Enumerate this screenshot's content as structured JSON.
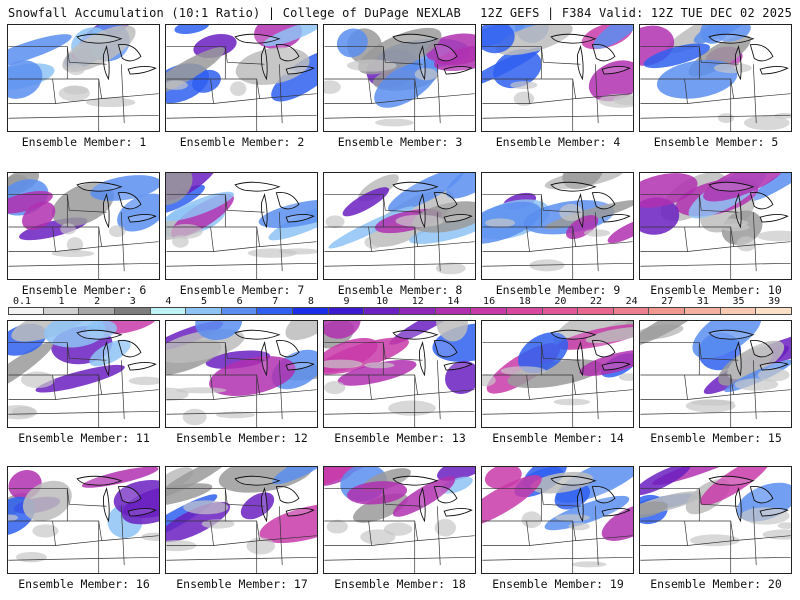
{
  "header": {
    "title": "Snowfall Accumulation (10:1 Ratio) | College of DuPage NEXLAB",
    "run_info": "12Z GEFS | F384 Valid: 12Z TUE DEC 02 2025"
  },
  "colorbar": {
    "labels": [
      "0.1",
      "1",
      "2",
      "3",
      "4",
      "5",
      "6",
      "7",
      "8",
      "9",
      "10",
      "12",
      "14",
      "16",
      "18",
      "20",
      "22",
      "24",
      "27",
      "31",
      "35",
      "39"
    ],
    "colors": [
      "#f2f2f2",
      "#d0d0d0",
      "#a8a8a8",
      "#7e7e7e",
      "#bdf2f5",
      "#8ec3f5",
      "#5a8ef0",
      "#2f5ff0",
      "#1c2fe8",
      "#3b1ad0",
      "#6a1fc0",
      "#8e28b8",
      "#b030b0",
      "#c83aa8",
      "#d848a0",
      "#e05898",
      "#e86890",
      "#ec8090",
      "#f09890",
      "#f4b0a0",
      "#f8c8b0",
      "#fbe0c8"
    ]
  },
  "members": [
    {
      "label": "Ensemble Member: 1"
    },
    {
      "label": "Ensemble Member: 2"
    },
    {
      "label": "Ensemble Member: 3"
    },
    {
      "label": "Ensemble Member: 4"
    },
    {
      "label": "Ensemble Member: 5"
    },
    {
      "label": "Ensemble Member: 6"
    },
    {
      "label": "Ensemble Member: 7"
    },
    {
      "label": "Ensemble Member: 8"
    },
    {
      "label": "Ensemble Member: 9"
    },
    {
      "label": "Ensemble Member: 10"
    },
    {
      "label": "Ensemble Member: 11"
    },
    {
      "label": "Ensemble Member: 12"
    },
    {
      "label": "Ensemble Member: 13"
    },
    {
      "label": "Ensemble Member: 14"
    },
    {
      "label": "Ensemble Member: 15"
    },
    {
      "label": "Ensemble Member: 16"
    },
    {
      "label": "Ensemble Member: 17"
    },
    {
      "label": "Ensemble Member: 18"
    },
    {
      "label": "Ensemble Member: 19"
    },
    {
      "label": "Ensemble Member: 20"
    }
  ]
}
